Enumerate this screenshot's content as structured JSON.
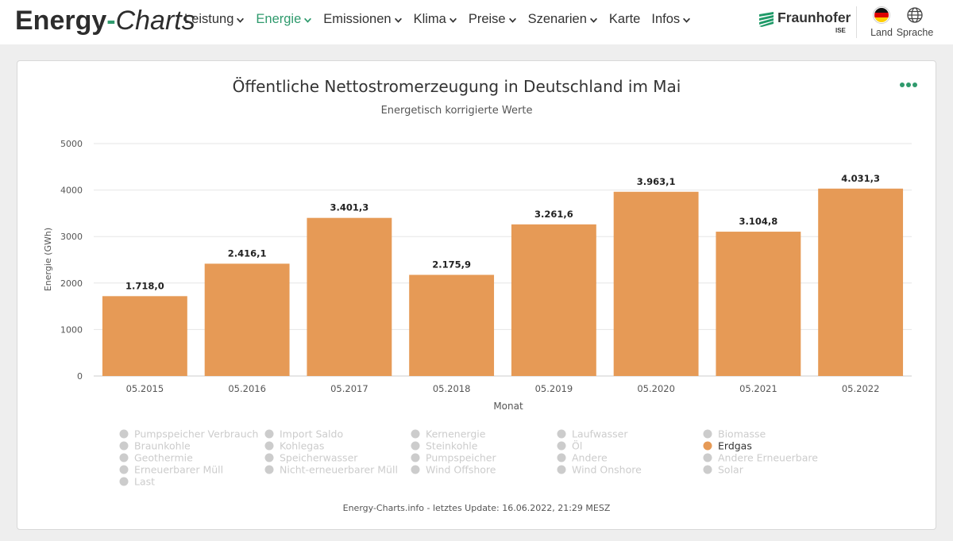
{
  "header": {
    "logo_part1": "Energy",
    "logo_part2": "-",
    "logo_part3": "Charts",
    "nav": [
      {
        "label": "Leistung",
        "active": false
      },
      {
        "label": "Energie",
        "active": true
      },
      {
        "label": "Emissionen",
        "active": false
      },
      {
        "label": "Klima",
        "active": false
      },
      {
        "label": "Preise",
        "active": false
      },
      {
        "label": "Szenarien",
        "active": false
      },
      {
        "label": "Karte",
        "active": false,
        "chevron": false
      },
      {
        "label": "Infos",
        "active": false
      }
    ],
    "partner_name": "Fraunhofer",
    "partner_sub": "ISE",
    "land_label": "Land",
    "sprache_label": "Sprache",
    "accent_color": "#2f9a6d"
  },
  "chart_data": {
    "type": "bar",
    "title": "Öffentliche Nettostromerzeugung in Deutschland im Mai",
    "subtitle": "Energetisch korrigierte Werte",
    "xlabel": "Monat",
    "ylabel": "Energie (GWh)",
    "ylim": [
      0,
      5000
    ],
    "yticks": [
      "0",
      "1000",
      "2000",
      "3000",
      "4000",
      "5000"
    ],
    "categories": [
      "05.2015",
      "05.2016",
      "05.2017",
      "05.2018",
      "05.2019",
      "05.2020",
      "05.2021",
      "05.2022"
    ],
    "values": [
      1718.0,
      2416.1,
      3401.3,
      2175.9,
      3261.6,
      3963.1,
      3104.8,
      4031.3
    ],
    "value_labels": [
      "1.718,0",
      "2.416,1",
      "3.401,3",
      "2.175,9",
      "3.261,6",
      "3.963,1",
      "3.104,8",
      "4.031,3"
    ],
    "bar_color": "#e69a56",
    "grid": true,
    "legend_position": "bottom",
    "legend": [
      {
        "name": "Pumpspeicher Verbrauch",
        "active": false
      },
      {
        "name": "Import Saldo",
        "active": false
      },
      {
        "name": "Kernenergie",
        "active": false
      },
      {
        "name": "Laufwasser",
        "active": false
      },
      {
        "name": "Biomasse",
        "active": false
      },
      {
        "name": "Braunkohle",
        "active": false
      },
      {
        "name": "Kohlegas",
        "active": false
      },
      {
        "name": "Steinkohle",
        "active": false
      },
      {
        "name": "Öl",
        "active": false
      },
      {
        "name": "Erdgas",
        "active": true
      },
      {
        "name": "Geothermie",
        "active": false
      },
      {
        "name": "Speicherwasser",
        "active": false
      },
      {
        "name": "Pumpspeicher",
        "active": false
      },
      {
        "name": "Andere",
        "active": false
      },
      {
        "name": "Andere Erneuerbare",
        "active": false
      },
      {
        "name": "Erneuerbarer Müll",
        "active": false
      },
      {
        "name": "Nicht-erneuerbarer Müll",
        "active": false
      },
      {
        "name": "Wind Offshore",
        "active": false
      },
      {
        "name": "Wind Onshore",
        "active": false
      },
      {
        "name": "Solar",
        "active": false
      },
      {
        "name": "Last",
        "active": false
      }
    ],
    "credits": "Energy-Charts.info - letztes Update: 16.06.2022, 21:29 MESZ"
  }
}
